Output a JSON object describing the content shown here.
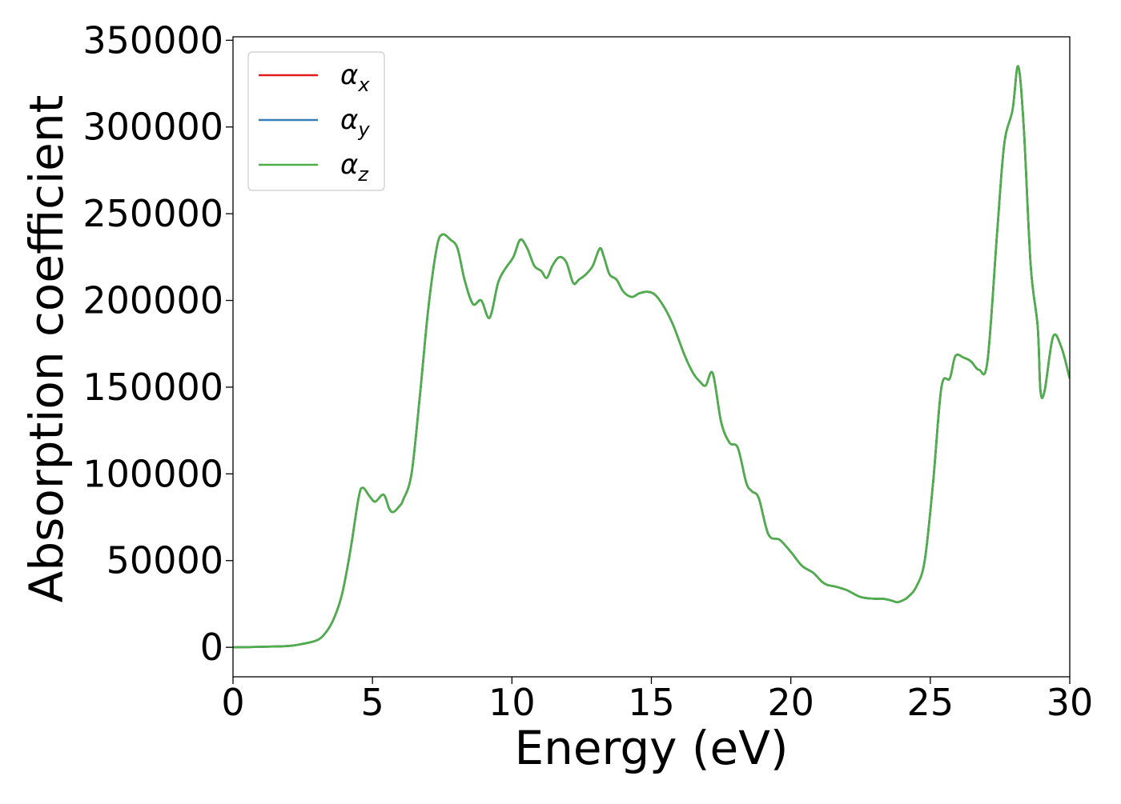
{
  "chart_data": {
    "type": "line",
    "title": "",
    "xlabel": "Energy (eV)",
    "ylabel": "Absorption coefficient",
    "xlim": [
      0,
      30
    ],
    "ylim": [
      -17000,
      352000
    ],
    "x_ticks": [
      0,
      5,
      10,
      15,
      20,
      25,
      30
    ],
    "x_tick_labels": [
      "0",
      "5",
      "10",
      "15",
      "20",
      "25",
      "30"
    ],
    "y_ticks": [
      0,
      50000,
      100000,
      150000,
      200000,
      250000,
      300000,
      350000
    ],
    "y_tick_labels": [
      "0",
      "50000",
      "100000",
      "150000",
      "200000",
      "250000",
      "300000",
      "350000"
    ],
    "grid": false,
    "legend_position": "top-left",
    "x": [
      0,
      1,
      2,
      2.5,
      3,
      3.3,
      3.6,
      3.9,
      4.2,
      4.5,
      4.65,
      4.9,
      5.1,
      5.4,
      5.6,
      5.75,
      6,
      6.1,
      6.4,
      6.7,
      7,
      7.3,
      7.5,
      7.8,
      8.05,
      8.3,
      8.6,
      8.9,
      9.2,
      9.5,
      9.75,
      10.05,
      10.3,
      10.55,
      10.8,
      11.05,
      11.25,
      11.45,
      11.7,
      11.95,
      12.2,
      12.4,
      12.65,
      12.9,
      13.15,
      13.3,
      13.5,
      13.75,
      14,
      14.3,
      14.55,
      14.85,
      15.15,
      15.5,
      15.8,
      16.2,
      16.5,
      16.75,
      16.95,
      17.2,
      17.5,
      17.8,
      18.1,
      18.4,
      18.6,
      18.85,
      19.2,
      19.6,
      20,
      20.4,
      20.8,
      21.1,
      21.3,
      21.6,
      22,
      22.5,
      23,
      23.3,
      23.6,
      23.8,
      24,
      24.2,
      24.5,
      24.8,
      25.1,
      25.4,
      25.7,
      25.9,
      26.2,
      26.45,
      26.75,
      27.05,
      27.4,
      27.65,
      27.95,
      28.15,
      28.35,
      28.6,
      28.85,
      28.95,
      29.1,
      29.4,
      29.7,
      30
    ],
    "series": [
      {
        "name": "α_x",
        "color": "#e41a1c",
        "values": [
          0,
          300,
          800,
          2000,
          4000,
          8000,
          16000,
          30000,
          55000,
          86000,
          92000,
          87000,
          84000,
          88000,
          80000,
          78000,
          82000,
          85000,
          100000,
          145000,
          195000,
          230000,
          238000,
          235000,
          230000,
          212000,
          198000,
          200000,
          190000,
          210000,
          218000,
          225000,
          235000,
          230000,
          220000,
          217000,
          213000,
          220000,
          225000,
          222000,
          210000,
          212000,
          215000,
          220000,
          230000,
          225000,
          215000,
          212000,
          205000,
          202000,
          204000,
          205000,
          203000,
          195000,
          185000,
          168000,
          158000,
          153000,
          151000,
          158000,
          130000,
          118000,
          115000,
          95000,
          90000,
          86000,
          65000,
          62000,
          55000,
          47000,
          43000,
          38000,
          36000,
          35000,
          33000,
          29000,
          28000,
          28000,
          27000,
          26000,
          27000,
          29000,
          35000,
          50000,
          95000,
          150000,
          155000,
          168000,
          167000,
          165000,
          160000,
          165000,
          240000,
          290000,
          310000,
          335000,
          300000,
          220000,
          185000,
          148000,
          148000,
          179000,
          173000,
          155000
        ]
      },
      {
        "name": "α_y",
        "color": "#377eb8",
        "values": [
          0,
          300,
          800,
          2000,
          4000,
          8000,
          16000,
          30000,
          55000,
          86000,
          92000,
          87000,
          84000,
          88000,
          80000,
          78000,
          82000,
          85000,
          100000,
          145000,
          195000,
          230000,
          238000,
          235000,
          230000,
          212000,
          198000,
          200000,
          190000,
          210000,
          218000,
          225000,
          235000,
          230000,
          220000,
          217000,
          213000,
          220000,
          225000,
          222000,
          210000,
          212000,
          215000,
          220000,
          230000,
          225000,
          215000,
          212000,
          205000,
          202000,
          204000,
          205000,
          203000,
          195000,
          185000,
          168000,
          158000,
          153000,
          151000,
          158000,
          130000,
          118000,
          115000,
          95000,
          90000,
          86000,
          65000,
          62000,
          55000,
          47000,
          43000,
          38000,
          36000,
          35000,
          33000,
          29000,
          28000,
          28000,
          27000,
          26000,
          27000,
          29000,
          35000,
          50000,
          95000,
          150000,
          155000,
          168000,
          167000,
          165000,
          160000,
          165000,
          240000,
          290000,
          310000,
          335000,
          300000,
          220000,
          185000,
          148000,
          148000,
          179000,
          173000,
          155000
        ]
      },
      {
        "name": "α_z",
        "color": "#4daf4a",
        "values": [
          0,
          300,
          800,
          2000,
          4000,
          8000,
          16000,
          30000,
          55000,
          86000,
          92000,
          87000,
          84000,
          88000,
          80000,
          78000,
          82000,
          85000,
          100000,
          145000,
          195000,
          230000,
          238000,
          235000,
          230000,
          212000,
          198000,
          200000,
          190000,
          210000,
          218000,
          225000,
          235000,
          230000,
          220000,
          217000,
          213000,
          220000,
          225000,
          222000,
          210000,
          212000,
          215000,
          220000,
          230000,
          225000,
          215000,
          212000,
          205000,
          202000,
          204000,
          205000,
          203000,
          195000,
          185000,
          168000,
          158000,
          153000,
          151000,
          158000,
          130000,
          118000,
          115000,
          95000,
          90000,
          86000,
          65000,
          62000,
          55000,
          47000,
          43000,
          38000,
          36000,
          35000,
          33000,
          29000,
          28000,
          28000,
          27000,
          26000,
          27000,
          29000,
          35000,
          50000,
          95000,
          150000,
          155000,
          168000,
          167000,
          165000,
          160000,
          165000,
          240000,
          290000,
          310000,
          335000,
          300000,
          220000,
          185000,
          148000,
          148000,
          179000,
          173000,
          155000
        ]
      }
    ],
    "legend": [
      {
        "base": "α",
        "sub": "x",
        "color": "#e41a1c"
      },
      {
        "base": "α",
        "sub": "y",
        "color": "#377eb8"
      },
      {
        "base": "α",
        "sub": "z",
        "color": "#4daf4a"
      }
    ]
  }
}
